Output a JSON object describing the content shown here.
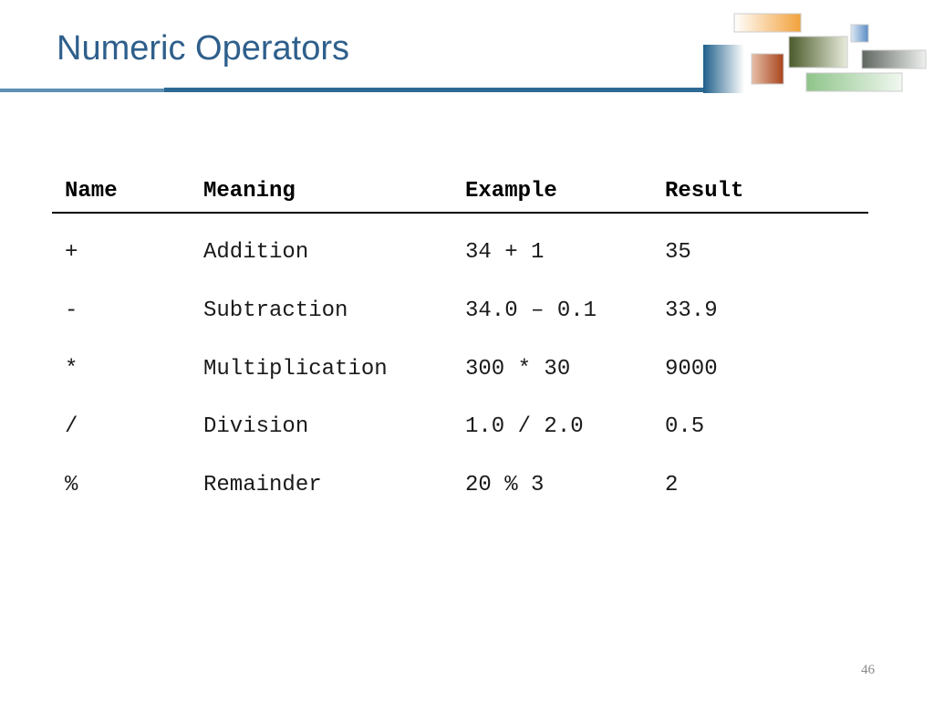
{
  "title": "Numeric Operators",
  "table": {
    "header": [
      "Name",
      "Meaning",
      "Example",
      "Result"
    ],
    "rows": [
      [
        "+",
        "Addition",
        "34 + 1",
        "35"
      ],
      [
        "-",
        "Subtraction",
        "34.0 – 0.1",
        "33.9"
      ],
      [
        "*",
        "Multiplication",
        "300 * 30",
        "9000"
      ],
      [
        "/",
        "Division",
        "1.0 / 2.0",
        "0.5"
      ],
      [
        "%",
        "Remainder",
        "20 % 3",
        "2"
      ]
    ]
  },
  "page_number": "46"
}
